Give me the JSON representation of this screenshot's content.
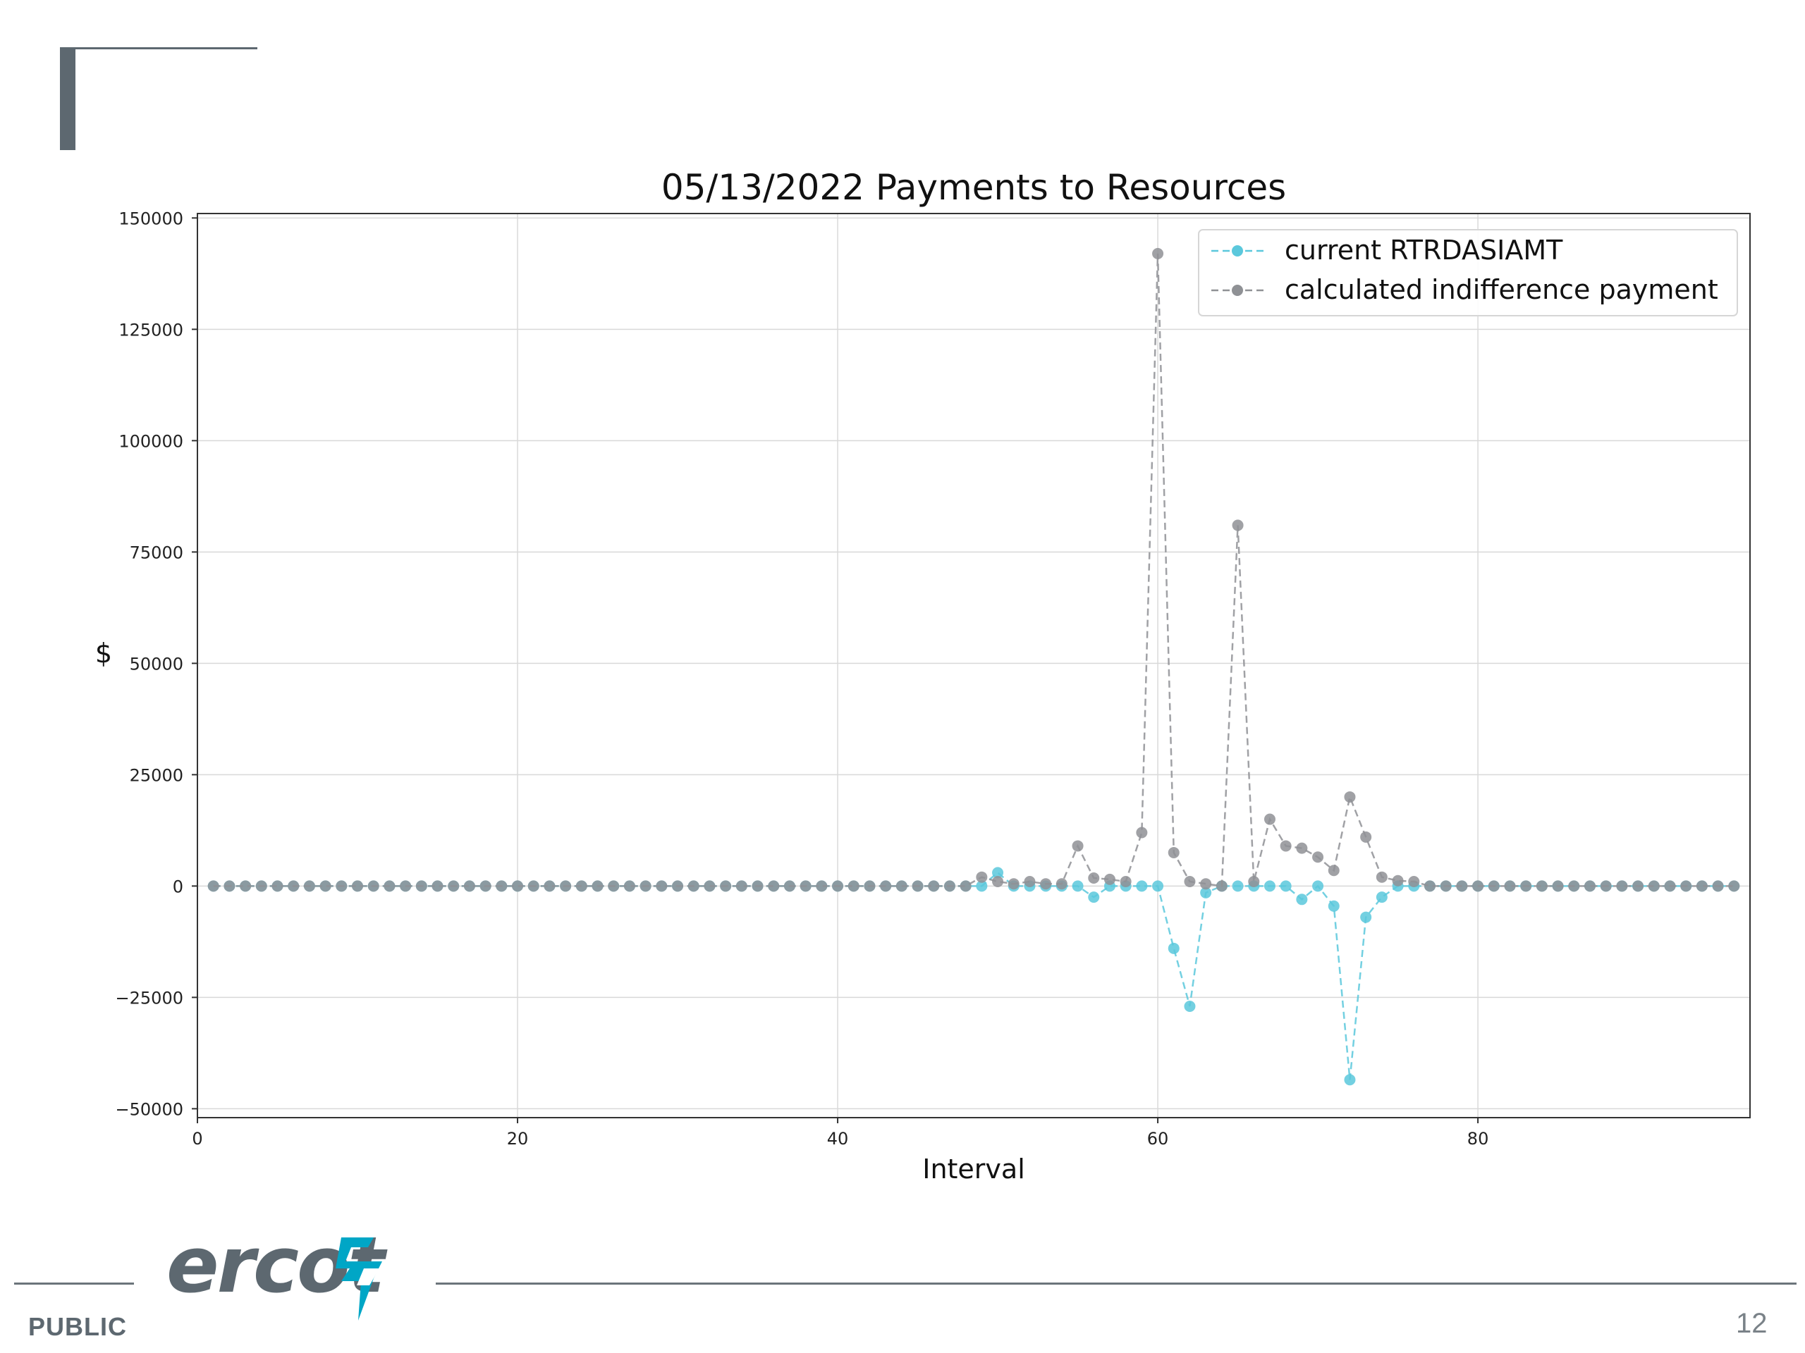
{
  "slide": {
    "public_label": "PUBLIC",
    "page_number": "12",
    "logo_text": "ercot",
    "logo_color": "#5d6870",
    "logo_mark_color": "#00a6c6"
  },
  "chart_data": {
    "type": "line",
    "title": "05/13/2022 Payments to Resources",
    "xlabel": "Interval",
    "ylabel": "$",
    "xlim": [
      0,
      97
    ],
    "ylim": [
      -52000,
      151000
    ],
    "xticks": [
      0,
      20,
      40,
      60,
      80
    ],
    "yticks": [
      -50000,
      -25000,
      0,
      25000,
      50000,
      75000,
      100000,
      125000,
      150000
    ],
    "ytick_labels": [
      "−50000",
      "−25000",
      "0",
      "25000",
      "50000",
      "75000",
      "100000",
      "125000",
      "150000"
    ],
    "grid": true,
    "legend_position": "top-right",
    "line_style": "dashed",
    "marker": "circle",
    "x": [
      1,
      2,
      3,
      4,
      5,
      6,
      7,
      8,
      9,
      10,
      11,
      12,
      13,
      14,
      15,
      16,
      17,
      18,
      19,
      20,
      21,
      22,
      23,
      24,
      25,
      26,
      27,
      28,
      29,
      30,
      31,
      32,
      33,
      34,
      35,
      36,
      37,
      38,
      39,
      40,
      41,
      42,
      43,
      44,
      45,
      46,
      47,
      48,
      49,
      50,
      51,
      52,
      53,
      54,
      55,
      56,
      57,
      58,
      59,
      60,
      61,
      62,
      63,
      64,
      65,
      66,
      67,
      68,
      69,
      70,
      71,
      72,
      73,
      74,
      75,
      76,
      77,
      78,
      79,
      80,
      81,
      82,
      83,
      84,
      85,
      86,
      87,
      88,
      89,
      90,
      91,
      92,
      93,
      94,
      95,
      96
    ],
    "series": [
      {
        "name": "current RTRDASIAMT",
        "color": "#5bc8dc",
        "values": [
          0,
          0,
          0,
          0,
          0,
          0,
          0,
          0,
          0,
          0,
          0,
          0,
          0,
          0,
          0,
          0,
          0,
          0,
          0,
          0,
          0,
          0,
          0,
          0,
          0,
          0,
          0,
          0,
          0,
          0,
          0,
          0,
          0,
          0,
          0,
          0,
          0,
          0,
          0,
          0,
          0,
          0,
          0,
          0,
          0,
          0,
          0,
          0,
          0,
          3000,
          0,
          0,
          0,
          0,
          0,
          -2500,
          0,
          0,
          0,
          0,
          -14000,
          -27000,
          -1500,
          0,
          0,
          0,
          0,
          0,
          -3000,
          0,
          -4500,
          -43500,
          -7000,
          -2500,
          0,
          0,
          0,
          0,
          0,
          0,
          0,
          0,
          0,
          0,
          0,
          0,
          0,
          0,
          0,
          0,
          0,
          0,
          0,
          0,
          0,
          0
        ]
      },
      {
        "name": "calculated indifference payment",
        "color": "#8f9195",
        "values": [
          0,
          0,
          0,
          0,
          0,
          0,
          0,
          0,
          0,
          0,
          0,
          0,
          0,
          0,
          0,
          0,
          0,
          0,
          0,
          0,
          0,
          0,
          0,
          0,
          0,
          0,
          0,
          0,
          0,
          0,
          0,
          0,
          0,
          0,
          0,
          0,
          0,
          0,
          0,
          0,
          0,
          0,
          0,
          0,
          0,
          0,
          0,
          0,
          2000,
          1000,
          500,
          1000,
          500,
          500,
          9000,
          1800,
          1500,
          1000,
          12000,
          142000,
          7500,
          1000,
          500,
          0,
          81000,
          1000,
          15000,
          9000,
          8500,
          6500,
          3500,
          20000,
          11000,
          2000,
          1200,
          1000,
          0,
          0,
          0,
          0,
          0,
          0,
          0,
          0,
          0,
          0,
          0,
          0,
          0,
          0,
          0,
          0,
          0,
          0,
          0,
          0
        ]
      }
    ]
  }
}
